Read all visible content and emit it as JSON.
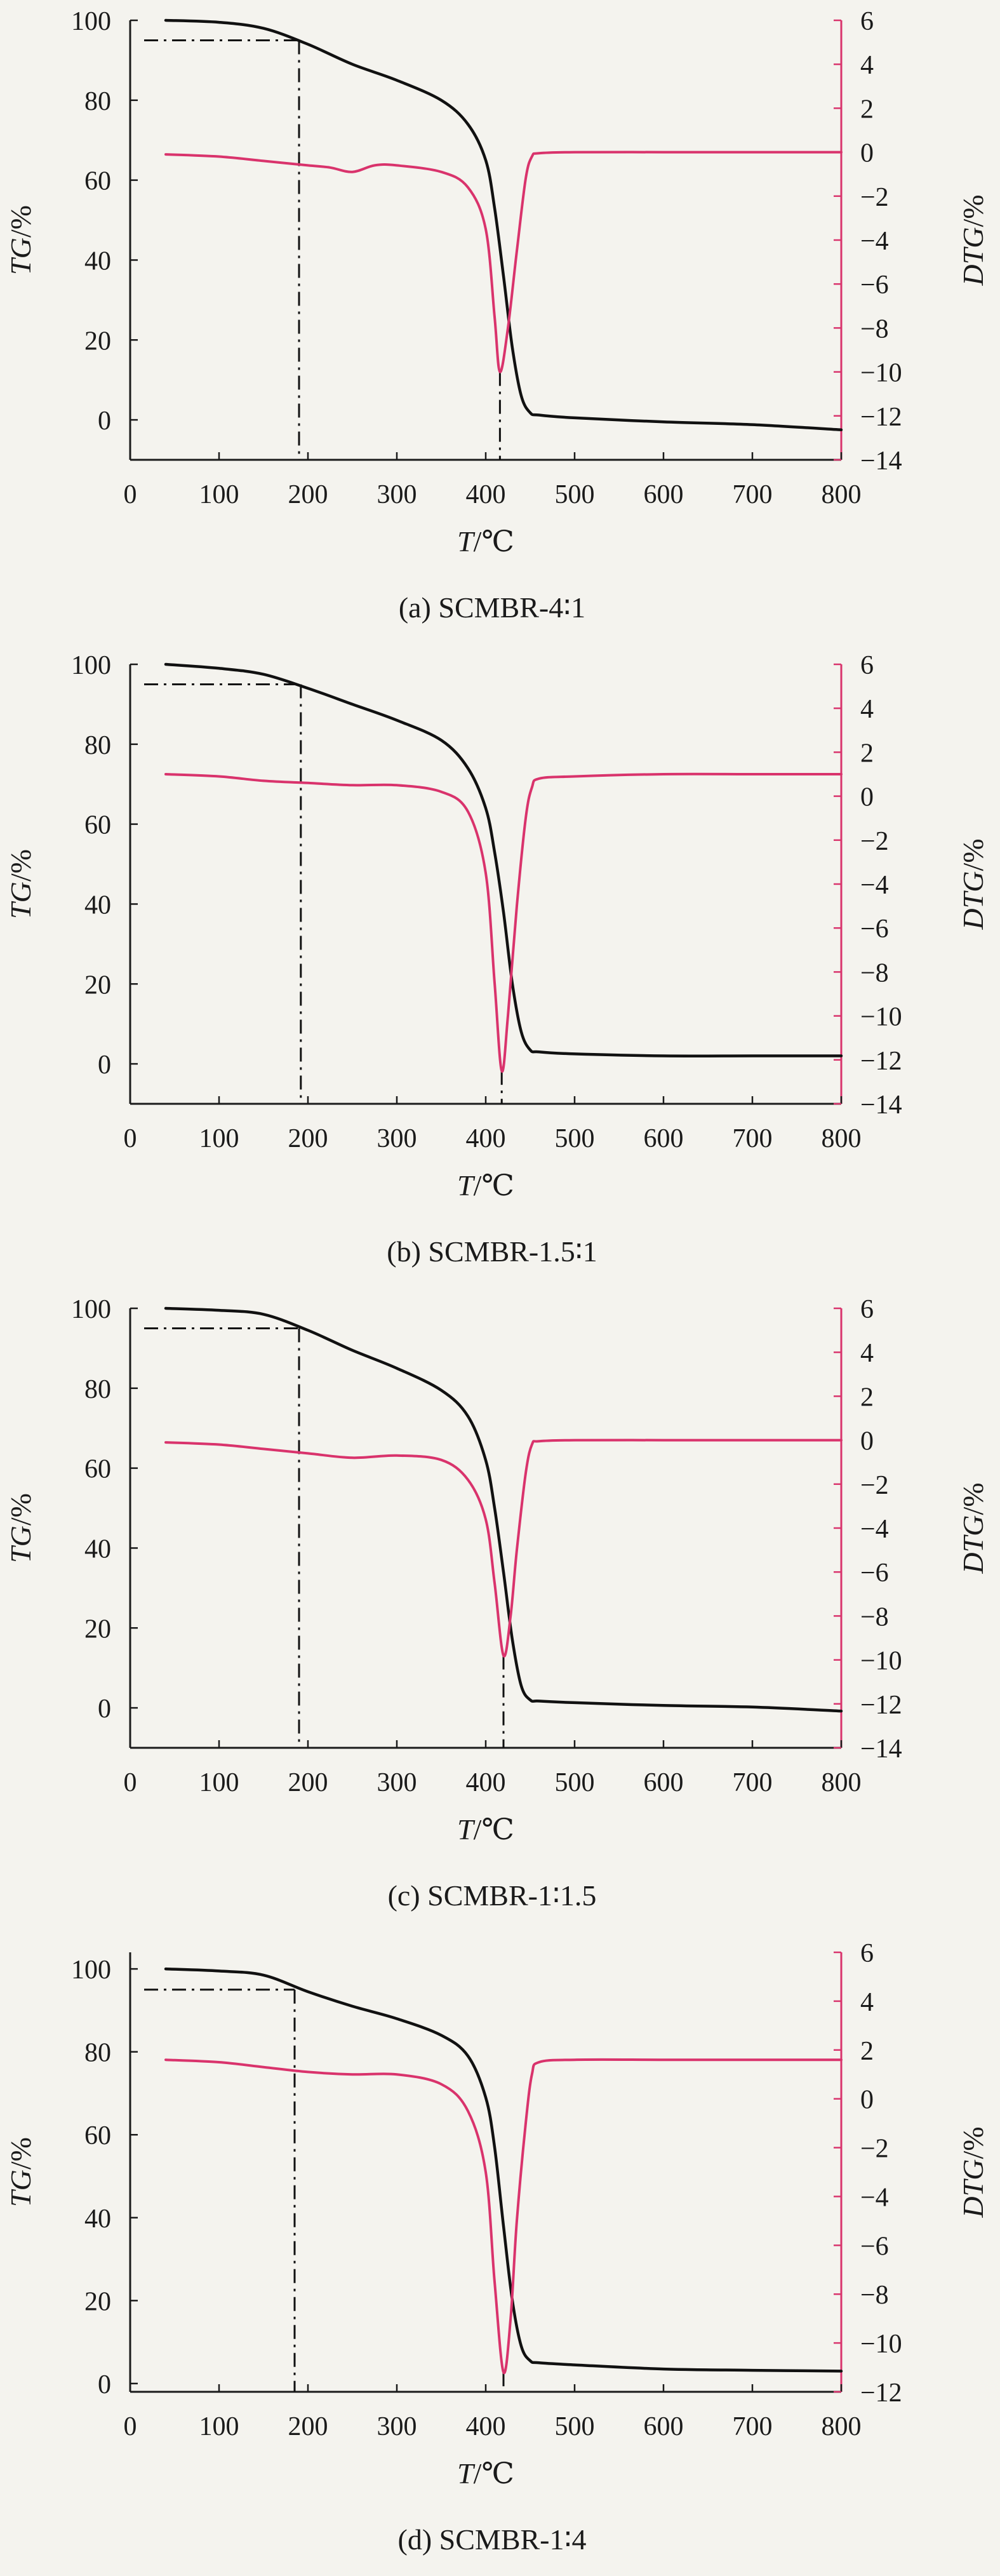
{
  "colors": {
    "background": "#f4f3ee",
    "axis": "#1a1a1a",
    "tg_line": "#111111",
    "dtg_line": "#d9336c",
    "dtg_axis": "#d9336c",
    "marker_line": "#111111"
  },
  "chart_data": [
    {
      "type": "line",
      "caption": "(a) SCMBR-4∶1",
      "xlabel_italic": "T",
      "xlabel_unit": "/℃",
      "ylabel_italic": "TG",
      "ylabel_unit": "/%",
      "y2label_italic": "DTG",
      "y2label_unit": "/%",
      "xlim": [
        0,
        800
      ],
      "xticks": [
        0,
        100,
        200,
        300,
        400,
        500,
        600,
        700,
        800
      ],
      "ylim": [
        -10,
        100
      ],
      "yticks": [
        0,
        20,
        40,
        60,
        80,
        100
      ],
      "y2lim": [
        -14,
        6
      ],
      "y2ticks": [
        -14,
        -12,
        -10,
        -8,
        -6,
        -4,
        -2,
        0,
        2,
        4,
        6
      ],
      "grid": false,
      "markers": {
        "t5_x": 190,
        "t5_y": 95,
        "tmax_x": 416,
        "tmax_dtg": -10.0
      },
      "series": [
        {
          "axis": "left",
          "x": [
            40,
            100,
            150,
            200,
            250,
            300,
            350,
            380,
            400,
            410,
            420,
            430,
            440,
            450,
            460,
            500,
            600,
            700,
            800
          ],
          "y": [
            100,
            99.5,
            98,
            94,
            89,
            85,
            80,
            74,
            65,
            53,
            36,
            18,
            6,
            1.8,
            1.2,
            0.5,
            -0.5,
            -1.2,
            -2.5
          ]
        },
        {
          "axis": "right",
          "x": [
            40,
            100,
            150,
            200,
            225,
            250,
            275,
            300,
            350,
            380,
            400,
            410,
            416,
            425,
            435,
            445,
            452,
            460,
            500,
            600,
            700,
            800
          ],
          "y": [
            -0.1,
            -0.2,
            -0.4,
            -0.6,
            -0.7,
            -0.9,
            -0.6,
            -0.6,
            -0.9,
            -1.6,
            -3.5,
            -7.5,
            -10.0,
            -8.0,
            -4.5,
            -1.2,
            -0.2,
            -0.05,
            0,
            0,
            0,
            0
          ]
        }
      ]
    },
    {
      "type": "line",
      "caption": "(b) SCMBR-1.5∶1",
      "xlabel_italic": "T",
      "xlabel_unit": "/℃",
      "ylabel_italic": "TG",
      "ylabel_unit": "/%",
      "y2label_italic": "DTG",
      "y2label_unit": "/%",
      "xlim": [
        0,
        800
      ],
      "xticks": [
        0,
        100,
        200,
        300,
        400,
        500,
        600,
        700,
        800
      ],
      "ylim": [
        -10,
        100
      ],
      "yticks": [
        0,
        20,
        40,
        60,
        80,
        100
      ],
      "y2lim": [
        -14,
        6
      ],
      "y2ticks": [
        -14,
        -12,
        -10,
        -8,
        -6,
        -4,
        -2,
        0,
        2,
        4,
        6
      ],
      "grid": false,
      "markers": {
        "t5_x": 192,
        "t5_y": 95,
        "tmax_x": 418,
        "tmax_dtg": -12.5
      },
      "series": [
        {
          "axis": "left",
          "x": [
            40,
            100,
            150,
            200,
            250,
            300,
            350,
            380,
            400,
            410,
            420,
            430,
            440,
            450,
            460,
            500,
            600,
            700,
            800
          ],
          "y": [
            100,
            99,
            97.5,
            94,
            90,
            86,
            81,
            74,
            64,
            53,
            38,
            20,
            8,
            3.5,
            3,
            2.5,
            2,
            2,
            2
          ]
        },
        {
          "axis": "right",
          "x": [
            40,
            100,
            150,
            200,
            250,
            300,
            350,
            380,
            400,
            410,
            418,
            425,
            435,
            445,
            452,
            460,
            500,
            600,
            700,
            800
          ],
          "y": [
            1.0,
            0.9,
            0.7,
            0.6,
            0.5,
            0.5,
            0.2,
            -0.7,
            -3.5,
            -8.5,
            -12.5,
            -10.0,
            -5.0,
            -1.0,
            0.4,
            0.8,
            0.9,
            1.0,
            1.0,
            1.0
          ]
        }
      ]
    },
    {
      "type": "line",
      "caption": "(c) SCMBR-1∶1.5",
      "xlabel_italic": "T",
      "xlabel_unit": "/℃",
      "ylabel_italic": "TG",
      "ylabel_unit": "/%",
      "y2label_italic": "DTG",
      "y2label_unit": "/%",
      "xlim": [
        0,
        800
      ],
      "xticks": [
        0,
        100,
        200,
        300,
        400,
        500,
        600,
        700,
        800
      ],
      "ylim": [
        -10,
        100
      ],
      "yticks": [
        0,
        20,
        40,
        60,
        80,
        100
      ],
      "y2lim": [
        -14,
        6
      ],
      "y2ticks": [
        -14,
        -12,
        -10,
        -8,
        -6,
        -4,
        -2,
        0,
        2,
        4,
        6
      ],
      "grid": false,
      "markers": {
        "t5_x": 190,
        "t5_y": 95,
        "tmax_x": 420,
        "tmax_dtg": -9.8
      },
      "series": [
        {
          "axis": "left",
          "x": [
            40,
            100,
            150,
            200,
            250,
            300,
            350,
            380,
            400,
            410,
            420,
            430,
            440,
            450,
            460,
            500,
            600,
            700,
            800
          ],
          "y": [
            100,
            99.5,
            98.5,
            94.5,
            89.5,
            85,
            79.5,
            73,
            62,
            50,
            34,
            17,
            5.5,
            2,
            1.7,
            1.3,
            0.6,
            0.2,
            -0.8
          ]
        },
        {
          "axis": "right",
          "x": [
            40,
            100,
            150,
            200,
            250,
            300,
            350,
            380,
            400,
            410,
            420,
            428,
            435,
            445,
            452,
            460,
            500,
            600,
            700,
            800
          ],
          "y": [
            -0.1,
            -0.2,
            -0.4,
            -0.6,
            -0.8,
            -0.7,
            -0.9,
            -1.8,
            -3.6,
            -6.5,
            -9.8,
            -8.0,
            -5.0,
            -1.5,
            -0.2,
            -0.05,
            0,
            0,
            0,
            0
          ]
        }
      ]
    },
    {
      "type": "line",
      "caption": "(d) SCMBR-1∶4",
      "xlabel_italic": "T",
      "xlabel_unit": "/℃",
      "ylabel_italic": "TG",
      "ylabel_unit": "/%",
      "y2label_italic": "DTG",
      "y2label_unit": "/%",
      "xlim": [
        0,
        800
      ],
      "xticks": [
        0,
        100,
        200,
        300,
        400,
        500,
        600,
        700,
        800
      ],
      "ylim": [
        -2,
        104
      ],
      "yticks": [
        0,
        20,
        40,
        60,
        80,
        100
      ],
      "y2lim": [
        -12,
        6
      ],
      "y2ticks": [
        -12,
        -10,
        -8,
        -6,
        -4,
        -2,
        0,
        2,
        4,
        6
      ],
      "grid": false,
      "markers": {
        "t5_x": 185,
        "t5_y": 95,
        "tmax_x": 420,
        "tmax_dtg": -11.2
      },
      "series": [
        {
          "axis": "left",
          "x": [
            40,
            100,
            150,
            200,
            250,
            300,
            350,
            380,
            400,
            410,
            420,
            430,
            440,
            450,
            460,
            500,
            600,
            700,
            800
          ],
          "y": [
            100,
            99.5,
            98.5,
            94.5,
            91,
            88,
            84,
            79,
            69,
            57,
            38,
            20,
            9,
            5.5,
            5,
            4.5,
            3.5,
            3.2,
            3
          ]
        },
        {
          "axis": "right",
          "x": [
            40,
            100,
            150,
            200,
            250,
            300,
            350,
            380,
            400,
            410,
            420,
            428,
            435,
            445,
            452,
            460,
            500,
            600,
            700,
            800
          ],
          "y": [
            1.6,
            1.5,
            1.3,
            1.1,
            1.0,
            1.0,
            0.6,
            -0.5,
            -3.0,
            -7.5,
            -11.2,
            -9.0,
            -5.0,
            -1.0,
            1.0,
            1.5,
            1.6,
            1.6,
            1.6,
            1.6
          ]
        }
      ]
    }
  ]
}
